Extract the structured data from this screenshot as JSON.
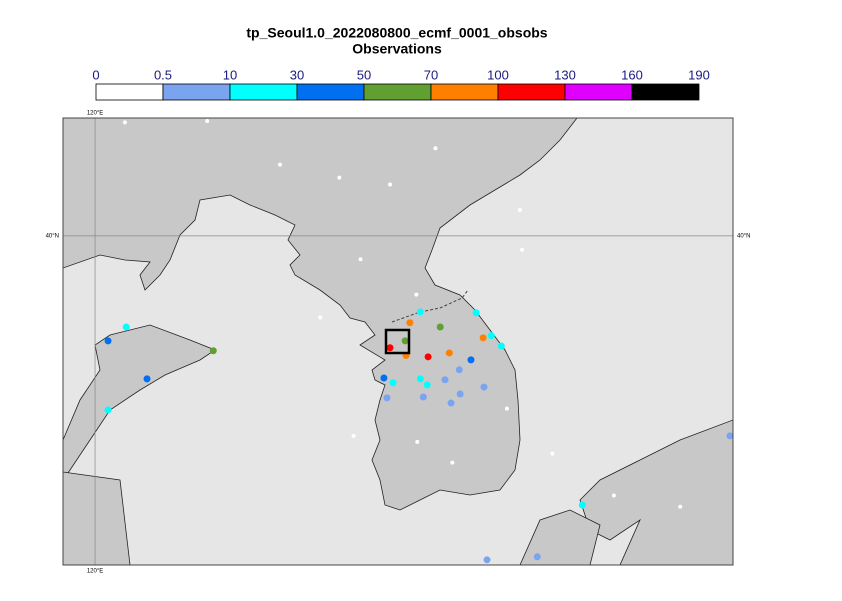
{
  "chart_data": {
    "type": "map",
    "title": "tp_Seoul1.0_2022080800_ecmf_0001_obsobs",
    "subtitle": "Observations",
    "colorbar": {
      "ticks": [
        0,
        0.5,
        10,
        30,
        50,
        70,
        100,
        130,
        160,
        190
      ],
      "colors": [
        "#ffffff",
        "#7ba4f0",
        "#00ffff",
        "#0070f0",
        "#60a030",
        "#ff8000",
        "#ff0000",
        "#e000ff",
        "#000000"
      ]
    },
    "xlim": [
      119.26,
      134.73
    ],
    "ylim": [
      32.38,
      42.73
    ],
    "xticks": [
      {
        "value": 120,
        "label": "120°E"
      }
    ],
    "yticks": [
      {
        "value": 40,
        "label": "40°N"
      }
    ],
    "grid": true,
    "observations": {
      "lon": [
        120.72,
        120.3,
        122.73,
        121.2,
        120.3,
        127.27,
        127.51,
        127.16,
        126.81,
        127.18,
        127.97,
        128.8,
        128.96,
        129.15,
        129.38,
        128.18,
        127.69,
        128.68,
        126.67,
        126.88,
        127.51,
        127.67,
        128.08,
        128.41,
        128.98,
        126.74,
        127.58,
        128.22,
        128.43,
        131.25,
        134.66,
        129.05,
        130.21,
        120.69,
        122.59,
        124.27,
        125.64,
        126.81,
        127.86,
        129.81,
        126.13,
        125.2,
        127.42,
        129.86,
        129.51,
        128.25,
        127.44,
        125.97,
        133.51,
        131.98,
        130.56
      ],
      "lat": [
        37.89,
        37.57,
        37.34,
        36.69,
        35.97,
        37.99,
        38.24,
        37.57,
        37.41,
        37.23,
        37.89,
        38.22,
        37.64,
        37.69,
        37.45,
        37.29,
        37.2,
        37.13,
        36.71,
        36.6,
        36.69,
        36.55,
        36.67,
        36.9,
        36.5,
        36.25,
        36.27,
        36.13,
        36.34,
        33.77,
        35.37,
        32.5,
        32.57,
        42.63,
        42.66,
        41.65,
        41.35,
        41.19,
        42.03,
        40.6,
        39.46,
        38.11,
        38.64,
        39.68,
        36.0,
        34.75,
        35.23,
        35.37,
        33.73,
        33.99,
        34.96
      ],
      "values": [
        20,
        40,
        60,
        40,
        20,
        80,
        20,
        60,
        110,
        80,
        60,
        20,
        80,
        20,
        20,
        80,
        110,
        40,
        40,
        20,
        20,
        20,
        5,
        5,
        5,
        5,
        5,
        5,
        5,
        20,
        5,
        5,
        5,
        0,
        0,
        0,
        0,
        0,
        0,
        0,
        0,
        0,
        0,
        0,
        0,
        0,
        0,
        0,
        0,
        0,
        0
      ]
    }
  }
}
